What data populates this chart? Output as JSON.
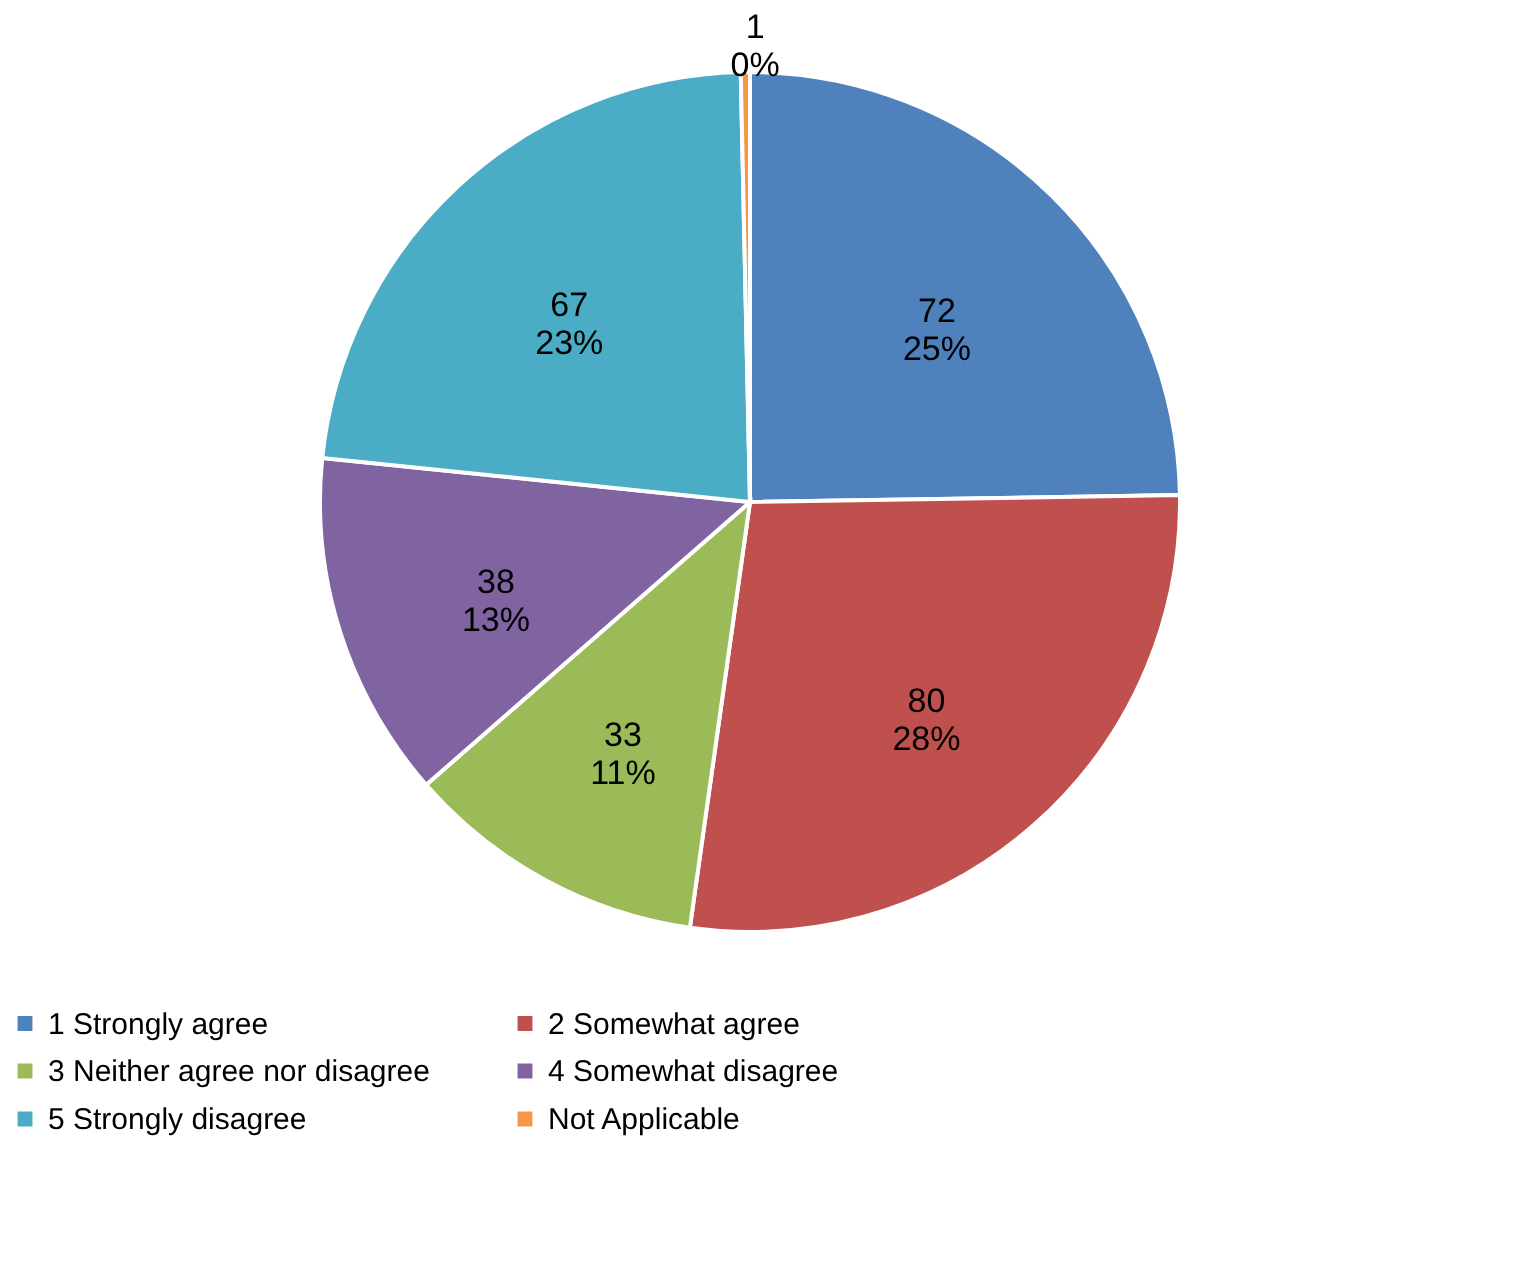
{
  "chart_data": {
    "type": "pie",
    "categories": [
      "1 Strongly agree",
      "2 Somewhat agree",
      "3 Neither agree nor disagree",
      "4 Somewhat disagree",
      "5 Strongly disagree",
      "Not Applicable"
    ],
    "values": [
      72,
      80,
      33,
      38,
      67,
      1
    ],
    "colors": [
      "#4f81bd",
      "#c0504d",
      "#9bbb59",
      "#8064a2",
      "#4bacc6",
      "#f79646"
    ],
    "value_labels": [
      "72\n25%",
      "80\n28%",
      "33\n11%",
      "38\n13%",
      "67\n23%",
      "1\n0%"
    ],
    "legend": "bottom"
  }
}
